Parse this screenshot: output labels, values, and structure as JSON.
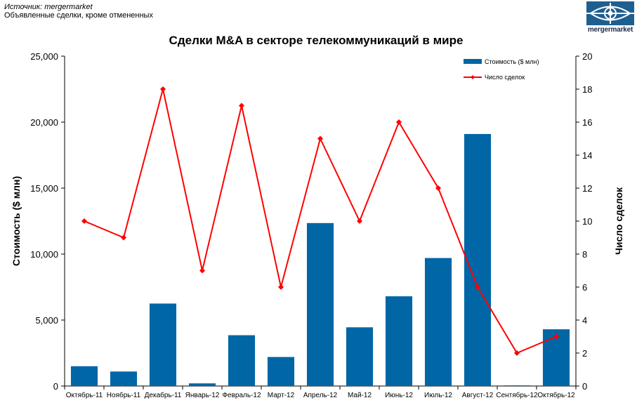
{
  "header": {
    "source": "Источник: mergermarket",
    "subtitle": "Объявленные сделки, кроме отмененных",
    "logo_text": "mergermarket"
  },
  "chart_data": {
    "type": "bar",
    "title": "Сделки M&A в секторе телекоммуникаций в мире",
    "categories": [
      "Октябрь-11",
      "Ноябрь-11",
      "Декабрь-11",
      "Январь-12",
      "Февраль-12",
      "Март-12",
      "Апрель-12",
      "Май-12",
      "Июнь-12",
      "Июль-12",
      "Август-12",
      "Сентябрь-12",
      "Октябрь-12"
    ],
    "series": [
      {
        "name": "Стоимость ($ млн)",
        "type": "bar",
        "axis": "left",
        "color": "#0066a6",
        "values": [
          1500,
          1100,
          6250,
          200,
          3850,
          2200,
          12350,
          4450,
          6800,
          9700,
          19100,
          50,
          4300
        ]
      },
      {
        "name": "Число сделок",
        "type": "line",
        "axis": "right",
        "color": "#ff0000",
        "values": [
          10,
          9,
          18,
          7,
          17,
          6,
          15,
          10,
          16,
          12,
          6,
          2,
          3
        ]
      }
    ],
    "ylabel": "Стоимость ($ млн)",
    "y2label": "Число сделок",
    "ylim": [
      0,
      25000
    ],
    "y2lim": [
      0,
      20
    ],
    "yticks": [
      "0",
      "5,000",
      "10,000",
      "15,000",
      "20,000",
      "25,000"
    ],
    "y2ticks": [
      "0",
      "2",
      "4",
      "6",
      "8",
      "10",
      "12",
      "14",
      "16",
      "18",
      "20"
    ],
    "grid": false,
    "legend": "top-right"
  }
}
